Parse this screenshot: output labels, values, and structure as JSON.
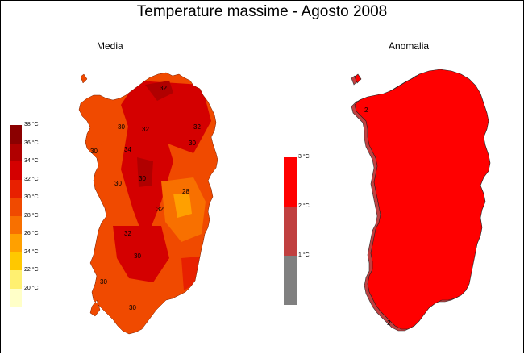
{
  "title": "Temperature massime - Agosto 2008",
  "panels": {
    "left": {
      "subtitle": "Media"
    },
    "right": {
      "subtitle": "Anomalia"
    }
  },
  "legend_media": {
    "labels": [
      "38 °C",
      "36 °C",
      "34 °C",
      "32 °C",
      "30 °C",
      "28 °C",
      "26 °C",
      "24 °C",
      "22 °C",
      "20 °C"
    ],
    "colors": [
      "#8b0000",
      "#b00000",
      "#d40000",
      "#e82000",
      "#f04a00",
      "#f87000",
      "#ffa000",
      "#ffc800",
      "#fff070",
      "#ffffc8"
    ]
  },
  "legend_anomalia": {
    "labels": [
      "3 °C",
      "2 °C",
      "1 °C"
    ],
    "colors": [
      "#ff0000",
      "#c04040",
      "#808080"
    ]
  },
  "isolines_media": [
    "32",
    "30",
    "32",
    "32",
    "30",
    "34",
    "30",
    "30",
    "30",
    "28",
    "32",
    "32",
    "30",
    "30",
    "30"
  ],
  "isolines_anomalia": [
    "2",
    "2"
  ]
}
